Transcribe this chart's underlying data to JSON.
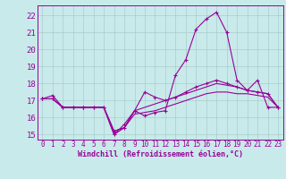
{
  "background_color": "#c8eaea",
  "line_color": "#990099",
  "grid_color": "#aacccc",
  "title": "Windchill (Refroidissement éolien,°C)",
  "xlim": [
    -0.5,
    23.5
  ],
  "ylim": [
    14.7,
    22.6
  ],
  "yticks": [
    15,
    16,
    17,
    18,
    19,
    20,
    21,
    22
  ],
  "xticks": [
    0,
    1,
    2,
    3,
    4,
    5,
    6,
    7,
    8,
    9,
    10,
    11,
    12,
    13,
    14,
    15,
    16,
    17,
    18,
    19,
    20,
    21,
    22,
    23
  ],
  "series1": [
    17.1,
    17.3,
    16.6,
    16.6,
    16.6,
    16.6,
    16.6,
    15.0,
    15.6,
    16.4,
    16.1,
    16.3,
    16.4,
    18.5,
    19.4,
    21.2,
    21.8,
    22.2,
    21.0,
    18.2,
    17.6,
    18.2,
    16.6,
    16.6
  ],
  "series2": [
    17.1,
    17.1,
    16.6,
    16.6,
    16.6,
    16.6,
    16.6,
    15.2,
    15.4,
    16.4,
    17.5,
    17.2,
    17.0,
    17.2,
    17.5,
    17.8,
    18.0,
    18.2,
    18.0,
    17.8,
    17.6,
    17.5,
    17.4,
    16.6
  ],
  "series3": [
    17.1,
    17.1,
    16.6,
    16.6,
    16.6,
    16.6,
    16.6,
    15.2,
    15.4,
    16.4,
    16.6,
    16.8,
    17.0,
    17.2,
    17.4,
    17.6,
    17.8,
    18.0,
    17.9,
    17.8,
    17.6,
    17.5,
    17.4,
    16.6
  ],
  "series4": [
    17.1,
    17.1,
    16.6,
    16.6,
    16.6,
    16.6,
    16.6,
    15.0,
    15.4,
    16.2,
    16.3,
    16.4,
    16.6,
    16.8,
    17.0,
    17.2,
    17.4,
    17.5,
    17.5,
    17.4,
    17.4,
    17.3,
    17.2,
    16.6
  ],
  "tick_fontsize": 5.5,
  "ylabel_fontsize": 6.0,
  "xlabel_fontsize": 6.5
}
